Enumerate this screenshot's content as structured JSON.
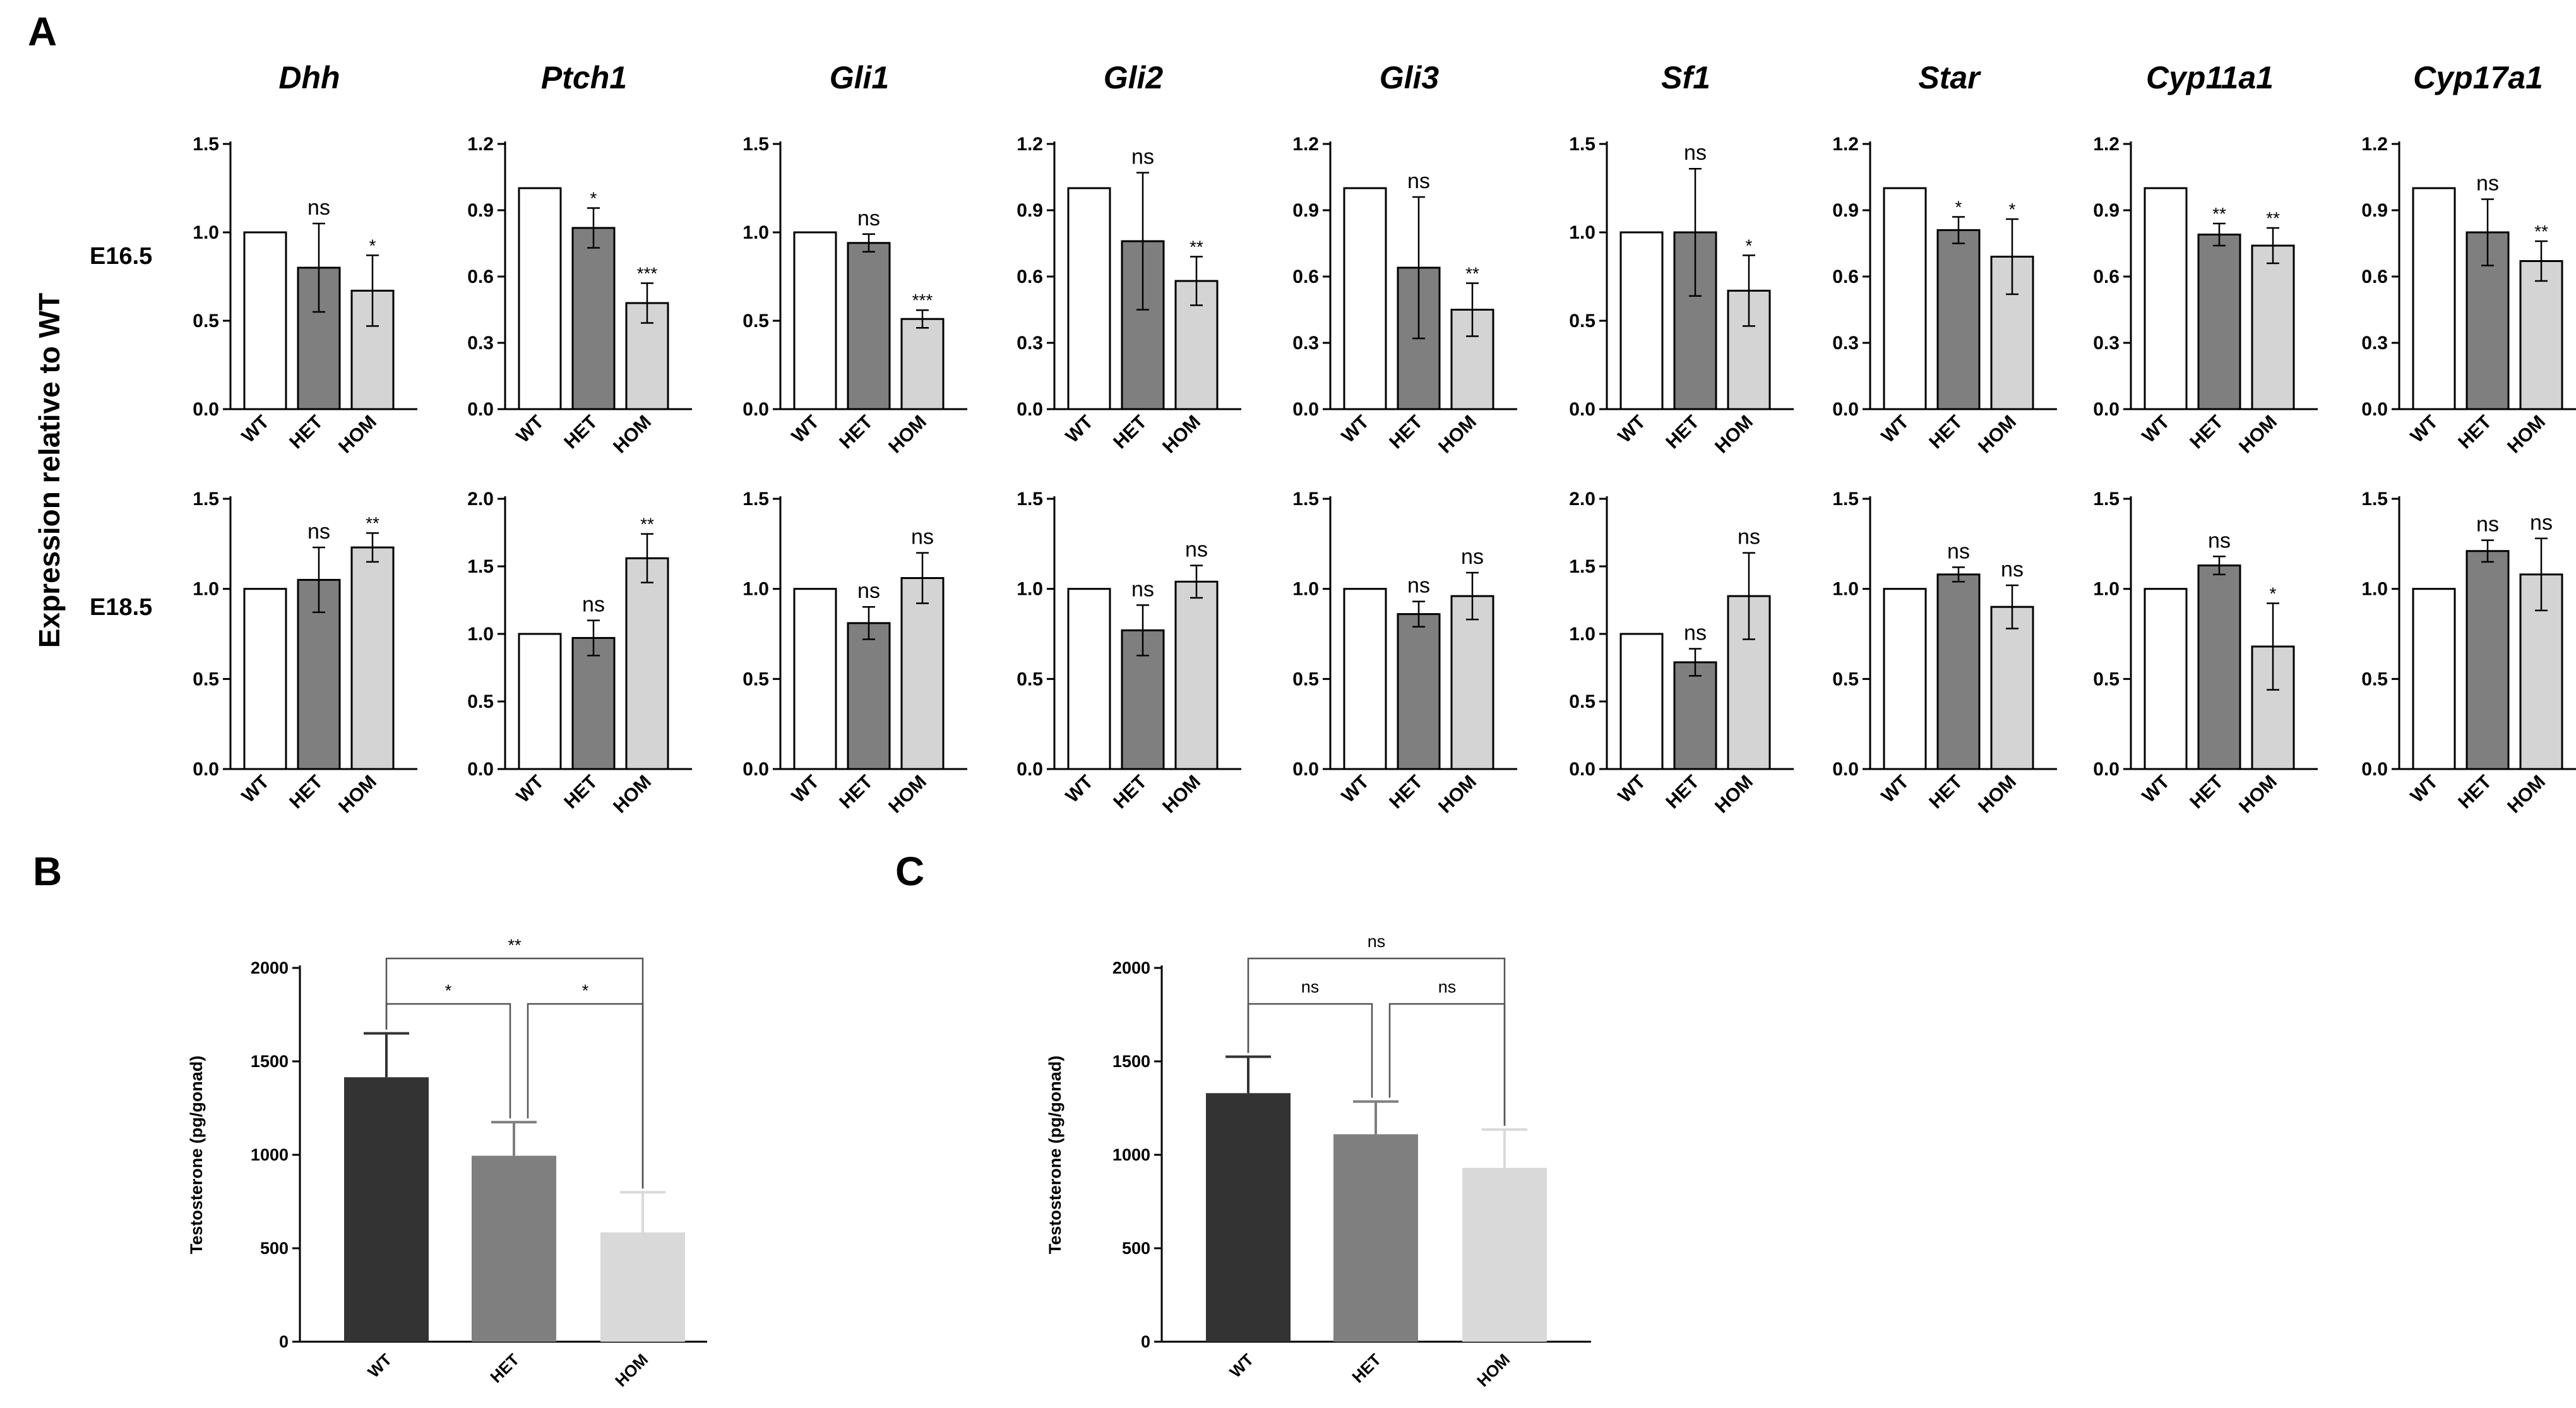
{
  "panel_labels": {
    "A": "A",
    "B": "B",
    "C": "C"
  },
  "panel_A": {
    "y_axis_label": "Expression relative to WT",
    "row_labels": [
      "E16.5",
      "E18.5"
    ],
    "categories": [
      "WT",
      "HET",
      "HOM"
    ],
    "bar_colors": [
      "#ffffff",
      "#7f7f7f",
      "#d4d4d4"
    ]
  },
  "panel_B": {
    "y_axis_label": "Testosterone (pg/gonad)",
    "categories": [
      "WT",
      "HET",
      "HOM"
    ],
    "bar_colors": [
      "#333333",
      "#7f7f7f",
      "#d9d9d9"
    ]
  },
  "panel_C": {
    "y_axis_label": "Testosterone (pg/gonad)",
    "categories": [
      "WT",
      "HET",
      "HOM"
    ],
    "bar_colors": [
      "#333333",
      "#7f7f7f",
      "#d9d9d9"
    ]
  },
  "chart_data": [
    {
      "id": "A-Dhh-E16.5",
      "type": "bar",
      "gene": "Dhh",
      "row": "E16.5",
      "categories": [
        "WT",
        "HET",
        "HOM"
      ],
      "values": [
        1.0,
        0.8,
        0.67
      ],
      "errors": [
        0,
        0.25,
        0.2
      ],
      "significance": [
        "",
        "ns",
        "*"
      ],
      "yticks": [
        "0.0",
        "0.5",
        "1.0",
        "1.5"
      ],
      "ylim": [
        0,
        1.5
      ]
    },
    {
      "id": "A-Ptch1-E16.5",
      "type": "bar",
      "gene": "Ptch1",
      "row": "E16.5",
      "categories": [
        "WT",
        "HET",
        "HOM"
      ],
      "values": [
        1.0,
        0.82,
        0.48
      ],
      "errors": [
        0,
        0.09,
        0.09
      ],
      "significance": [
        "",
        "*",
        "***"
      ],
      "yticks": [
        "0.0",
        "0.3",
        "0.6",
        "0.9",
        "1.2"
      ],
      "ylim": [
        0,
        1.2
      ]
    },
    {
      "id": "A-Gli1-E16.5",
      "type": "bar",
      "gene": "Gli1",
      "row": "E16.5",
      "categories": [
        "WT",
        "HET",
        "HOM"
      ],
      "values": [
        1.0,
        0.94,
        0.51
      ],
      "errors": [
        0,
        0.05,
        0.05
      ],
      "significance": [
        "",
        "ns",
        "***"
      ],
      "yticks": [
        "0.0",
        "0.5",
        "1.0",
        "1.5"
      ],
      "ylim": [
        0,
        1.5
      ]
    },
    {
      "id": "A-Gli2-E16.5",
      "type": "bar",
      "gene": "Gli2",
      "row": "E16.5",
      "categories": [
        "WT",
        "HET",
        "HOM"
      ],
      "values": [
        1.0,
        0.76,
        0.58
      ],
      "errors": [
        0,
        0.31,
        0.11
      ],
      "significance": [
        "",
        "ns",
        "**"
      ],
      "yticks": [
        "0.0",
        "0.3",
        "0.6",
        "0.9",
        "1.2"
      ],
      "ylim": [
        0,
        1.2
      ]
    },
    {
      "id": "A-Gli3-E16.5",
      "type": "bar",
      "gene": "Gli3",
      "row": "E16.5",
      "categories": [
        "WT",
        "HET",
        "HOM"
      ],
      "values": [
        1.0,
        0.64,
        0.45
      ],
      "errors": [
        0,
        0.32,
        0.12
      ],
      "significance": [
        "",
        "ns",
        "**"
      ],
      "yticks": [
        "0.0",
        "0.3",
        "0.6",
        "0.9",
        "1.2"
      ],
      "ylim": [
        0,
        1.2
      ]
    },
    {
      "id": "A-Sf1-E16.5",
      "type": "bar",
      "gene": "Sf1",
      "row": "E16.5",
      "categories": [
        "WT",
        "HET",
        "HOM"
      ],
      "values": [
        1.0,
        1.0,
        0.67
      ],
      "errors": [
        0,
        0.36,
        0.2
      ],
      "significance": [
        "",
        "ns",
        "*"
      ],
      "yticks": [
        "0.0",
        "0.5",
        "1.0",
        "1.5"
      ],
      "ylim": [
        0,
        1.5
      ]
    },
    {
      "id": "A-Star-E16.5",
      "type": "bar",
      "gene": "Star",
      "row": "E16.5",
      "categories": [
        "WT",
        "HET",
        "HOM"
      ],
      "values": [
        1.0,
        0.81,
        0.69
      ],
      "errors": [
        0,
        0.06,
        0.17
      ],
      "significance": [
        "",
        "*",
        "*"
      ],
      "yticks": [
        "0.0",
        "0.3",
        "0.6",
        "0.9",
        "1.2"
      ],
      "ylim": [
        0,
        1.2
      ]
    },
    {
      "id": "A-Cyp11a1-E16.5",
      "type": "bar",
      "gene": "Cyp11a1",
      "row": "E16.5",
      "categories": [
        "WT",
        "HET",
        "HOM"
      ],
      "values": [
        1.0,
        0.79,
        0.74
      ],
      "errors": [
        0,
        0.05,
        0.08
      ],
      "significance": [
        "",
        "**",
        "**"
      ],
      "yticks": [
        "0.0",
        "0.3",
        "0.6",
        "0.9",
        "1.2"
      ],
      "ylim": [
        0,
        1.2
      ]
    },
    {
      "id": "A-Cyp17a1-E16.5",
      "type": "bar",
      "gene": "Cyp17a1",
      "row": "E16.5",
      "categories": [
        "WT",
        "HET",
        "HOM"
      ],
      "values": [
        1.0,
        0.8,
        0.67
      ],
      "errors": [
        0,
        0.15,
        0.09
      ],
      "significance": [
        "",
        "ns",
        "**"
      ],
      "yticks": [
        "0.0",
        "0.3",
        "0.6",
        "0.9",
        "1.2"
      ],
      "ylim": [
        0,
        1.2
      ]
    },
    {
      "id": "A-Dhh-E18.5",
      "type": "bar",
      "gene": "Dhh",
      "row": "E18.5",
      "categories": [
        "WT",
        "HET",
        "HOM"
      ],
      "values": [
        1.0,
        1.05,
        1.23
      ],
      "errors": [
        0,
        0.18,
        0.08
      ],
      "significance": [
        "",
        "ns",
        "**"
      ],
      "yticks": [
        "0.0",
        "0.5",
        "1.0",
        "1.5"
      ],
      "ylim": [
        0,
        1.5
      ]
    },
    {
      "id": "A-Ptch1-E18.5",
      "type": "bar",
      "gene": "Ptch1",
      "row": "E18.5",
      "categories": [
        "WT",
        "HET",
        "HOM"
      ],
      "values": [
        1.0,
        0.97,
        1.56
      ],
      "errors": [
        0,
        0.13,
        0.18
      ],
      "significance": [
        "",
        "ns",
        "**"
      ],
      "yticks": [
        "0.0",
        "0.5",
        "1.0",
        "1.5",
        "2.0"
      ],
      "ylim": [
        0,
        2.0
      ]
    },
    {
      "id": "A-Gli1-E18.5",
      "type": "bar",
      "gene": "Gli1",
      "row": "E18.5",
      "categories": [
        "WT",
        "HET",
        "HOM"
      ],
      "values": [
        1.0,
        0.81,
        1.06
      ],
      "errors": [
        0,
        0.09,
        0.14
      ],
      "significance": [
        "",
        "ns",
        "ns"
      ],
      "yticks": [
        "0.0",
        "0.5",
        "1.0",
        "1.5"
      ],
      "ylim": [
        0,
        1.5
      ]
    },
    {
      "id": "A-Gli2-E18.5",
      "type": "bar",
      "gene": "Gli2",
      "row": "E18.5",
      "categories": [
        "WT",
        "HET",
        "HOM"
      ],
      "values": [
        1.0,
        0.77,
        1.04
      ],
      "errors": [
        0,
        0.14,
        0.09
      ],
      "significance": [
        "",
        "ns",
        "ns"
      ],
      "yticks": [
        "0.0",
        "0.5",
        "1.0",
        "1.5"
      ],
      "ylim": [
        0,
        1.5
      ]
    },
    {
      "id": "A-Gli3-E18.5",
      "type": "bar",
      "gene": "Gli3",
      "row": "E18.5",
      "categories": [
        "WT",
        "HET",
        "HOM"
      ],
      "values": [
        1.0,
        0.86,
        0.96
      ],
      "errors": [
        0,
        0.07,
        0.13
      ],
      "significance": [
        "",
        "ns",
        "ns"
      ],
      "yticks": [
        "0.0",
        "0.5",
        "1.0",
        "1.5"
      ],
      "ylim": [
        0,
        1.5
      ]
    },
    {
      "id": "A-Sf1-E18.5",
      "type": "bar",
      "gene": "Sf1",
      "row": "E18.5",
      "categories": [
        "WT",
        "HET",
        "HOM"
      ],
      "values": [
        1.0,
        0.79,
        1.28
      ],
      "errors": [
        0,
        0.1,
        0.32
      ],
      "significance": [
        "",
        "ns",
        "ns"
      ],
      "yticks": [
        "0.0",
        "0.5",
        "1.0",
        "1.5",
        "2.0"
      ],
      "ylim": [
        0,
        2.0
      ]
    },
    {
      "id": "A-Star-E18.5",
      "type": "bar",
      "gene": "Star",
      "row": "E18.5",
      "categories": [
        "WT",
        "HET",
        "HOM"
      ],
      "values": [
        1.0,
        1.08,
        0.9
      ],
      "errors": [
        0,
        0.04,
        0.12
      ],
      "significance": [
        "",
        "ns",
        "ns"
      ],
      "yticks": [
        "0.0",
        "0.5",
        "1.0",
        "1.5"
      ],
      "ylim": [
        0,
        1.5
      ]
    },
    {
      "id": "A-Cyp11a1-E18.5",
      "type": "bar",
      "gene": "Cyp11a1",
      "row": "E18.5",
      "categories": [
        "WT",
        "HET",
        "HOM"
      ],
      "values": [
        1.0,
        1.13,
        0.68
      ],
      "errors": [
        0,
        0.05,
        0.24
      ],
      "significance": [
        "",
        "ns",
        "*"
      ],
      "yticks": [
        "0.0",
        "0.5",
        "1.0",
        "1.5"
      ],
      "ylim": [
        0,
        1.5
      ]
    },
    {
      "id": "A-Cyp17a1-E18.5",
      "type": "bar",
      "gene": "Cyp17a1",
      "row": "E18.5",
      "categories": [
        "WT",
        "HET",
        "HOM"
      ],
      "values": [
        1.0,
        1.21,
        1.08
      ],
      "errors": [
        0,
        0.06,
        0.2
      ],
      "significance": [
        "",
        "ns",
        "ns"
      ],
      "yticks": [
        "0.0",
        "0.5",
        "1.0",
        "1.5"
      ],
      "ylim": [
        0,
        1.5
      ]
    },
    {
      "id": "B",
      "type": "bar",
      "categories": [
        "WT",
        "HET",
        "HOM"
      ],
      "values": [
        1415,
        995,
        585
      ],
      "errors": [
        235,
        180,
        215
      ],
      "ylabel": "Testosterone (pg/gonad)",
      "yticks": [
        "0",
        "500",
        "1000",
        "1500",
        "2000"
      ],
      "ylim": [
        0,
        2000
      ],
      "comparisons": [
        {
          "from": "WT",
          "to": "HOM",
          "label": "**"
        },
        {
          "from": "WT",
          "to": "HET",
          "label": "*"
        },
        {
          "from": "HET",
          "to": "HOM",
          "label": "*"
        }
      ]
    },
    {
      "id": "C",
      "type": "bar",
      "categories": [
        "WT",
        "HET",
        "HOM"
      ],
      "values": [
        1330,
        1110,
        930
      ],
      "errors": [
        195,
        175,
        205
      ],
      "ylabel": "Testosterone (pg/gonad)",
      "yticks": [
        "0",
        "500",
        "1000",
        "1500",
        "2000"
      ],
      "ylim": [
        0,
        2000
      ],
      "comparisons": [
        {
          "from": "WT",
          "to": "HOM",
          "label": "ns"
        },
        {
          "from": "WT",
          "to": "HET",
          "label": "ns"
        },
        {
          "from": "HET",
          "to": "HOM",
          "label": "ns"
        }
      ]
    }
  ]
}
